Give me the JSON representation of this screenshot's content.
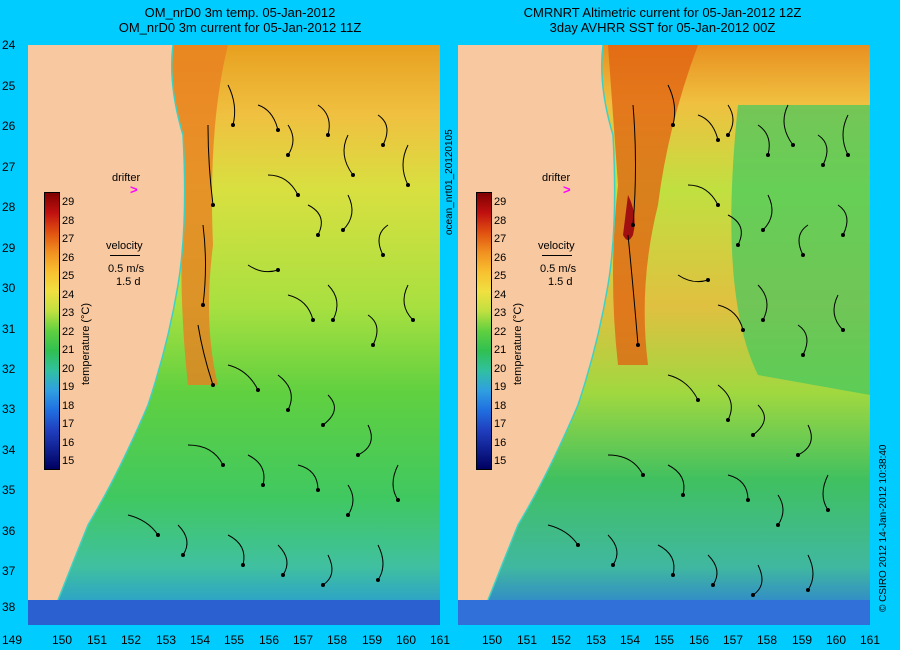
{
  "left_panel": {
    "title_line1": "OM_nrD0 3m temp. 05-Jan-2012",
    "title_line2": "OM_nrD0 3m current for 05-Jan-2012 11Z",
    "drifter_label": "drifter",
    "velocity_label": "velocity",
    "velocity_scale": "0.5 m/s",
    "velocity_time": "1.5 d"
  },
  "right_panel": {
    "title_line1": "CMRNRT Altimetric current for 05-Jan-2012 12Z",
    "title_line2": "3day AVHRR SST for 05-Jan-2012 00Z",
    "drifter_label": "drifter",
    "velocity_label": "velocity",
    "velocity_scale": "0.5 m/s",
    "velocity_time": "1.5 d"
  },
  "colorbar": {
    "label": "temperature (°C)",
    "ticks": [
      "29",
      "28",
      "27",
      "26",
      "25",
      "24",
      "23",
      "22",
      "21",
      "20",
      "19",
      "18",
      "17",
      "16",
      "15"
    ]
  },
  "side_text": {
    "model_id": "ocean_nrt01_20120105",
    "copyright": "© CSIRO 2012   14-Jan-2012 10:38:40"
  },
  "axes": {
    "lat_ticks": [
      "24",
      "25",
      "26",
      "27",
      "28",
      "29",
      "30",
      "31",
      "32",
      "33",
      "34",
      "35",
      "36",
      "37",
      "38"
    ],
    "lon_ticks_left": [
      "149",
      "150",
      "151",
      "152",
      "153",
      "154",
      "155",
      "156",
      "157",
      "158",
      "159",
      "160",
      "161"
    ],
    "lon_ticks_right": [
      "150",
      "151",
      "152",
      "153",
      "154",
      "155",
      "156",
      "157",
      "158",
      "159",
      "160",
      "161"
    ]
  },
  "colors": {
    "background": "#00ccff",
    "land": "#f8c8a0",
    "drifter": "#ff00ff"
  }
}
